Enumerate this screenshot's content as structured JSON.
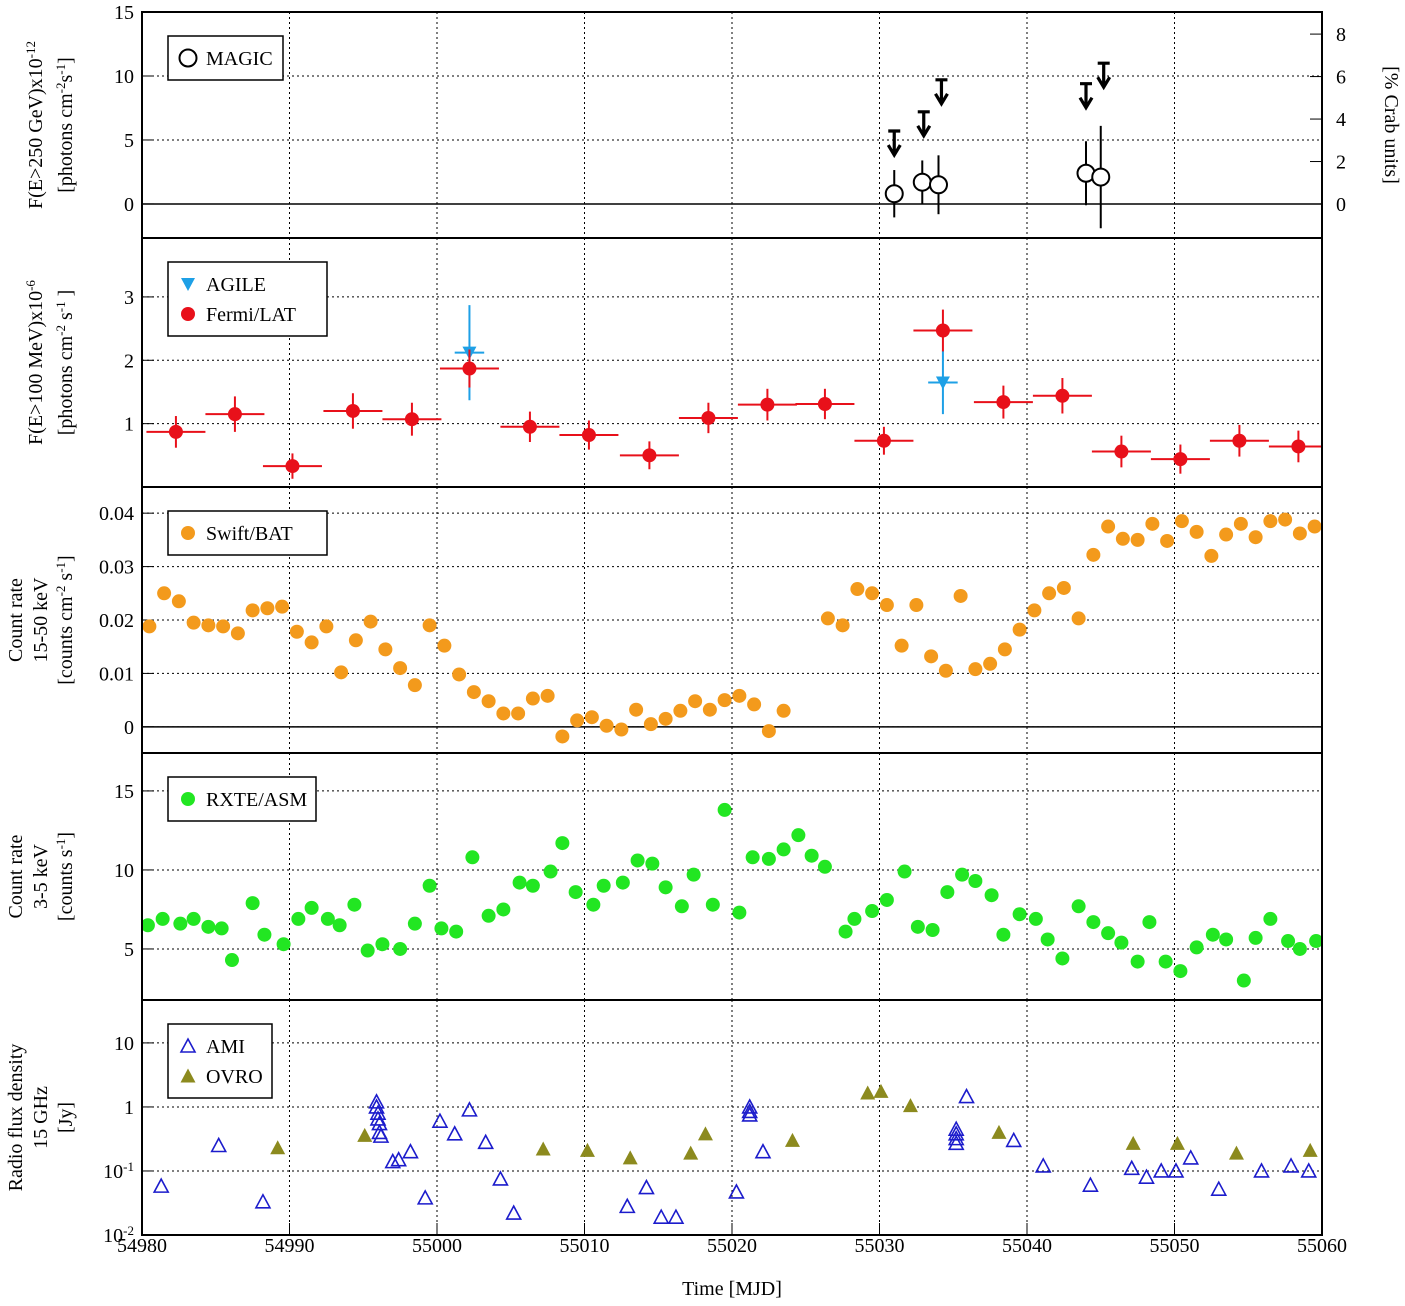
{
  "chart_data": [
    {
      "type": "scatter",
      "legend": "upper left",
      "grid": true,
      "zero_line": true,
      "log": false,
      "ylabel": [
        [
          "F(E>250 GeV)x10",
          "-12"
        ],
        [
          "[photons cm",
          "-2",
          "s",
          "-1",
          "]"
        ]
      ],
      "y2label": [
        [
          "[% Crab units]"
        ]
      ],
      "xlim": [
        54980,
        55060
      ],
      "ylim": [
        -2.66,
        15
      ],
      "yticks": [
        0,
        5,
        10,
        15
      ],
      "y2lim": [
        -1.6,
        9.04
      ],
      "y2ticks": [
        0,
        2,
        4,
        6,
        8
      ],
      "series": [
        {
          "name": "MAGIC",
          "color": "#000000",
          "marker": "circle-open",
          "x": [
            55031.0,
            55032.9,
            55034.0,
            55044.0,
            55045.0
          ],
          "values": [
            0.8,
            1.7,
            1.5,
            2.4,
            2.1
          ],
          "yerr": [
            1.85,
            1.7,
            2.3,
            2.5,
            4.0
          ]
        },
        {
          "color": "#000000",
          "marker": "upper-limit",
          "x": [
            55031.0,
            55033.0,
            55034.2,
            55044.0,
            55045.2
          ],
          "values": [
            5.7,
            7.2,
            9.7,
            9.4,
            11.0
          ]
        }
      ]
    },
    {
      "type": "scatter",
      "legend": "upper left",
      "grid": true,
      "zero_line": false,
      "log": false,
      "ylabel": [
        [
          "F(E>100 MeV)x10",
          "-6"
        ],
        [
          "[photons cm",
          "-2",
          " s",
          "-1",
          " ]"
        ]
      ],
      "xlim": [
        54980,
        55060
      ],
      "ylim": [
        0,
        3.93
      ],
      "yticks": [
        1,
        2,
        3
      ],
      "series": [
        {
          "name": "AGILE",
          "color": "#1ea0e6",
          "marker": "triangle-down",
          "x": [
            55002.2,
            55034.3
          ],
          "values": [
            2.12,
            1.65
          ],
          "yerr": [
            0.75,
            0.5
          ],
          "xerr": [
            1,
            1
          ]
        },
        {
          "name": "Fermi/LAT",
          "color": "#e8101a",
          "marker": "circle",
          "x": [
            54982.3,
            54986.3,
            54990.2,
            54994.3,
            54998.3,
            55002.2,
            55006.3,
            55010.3,
            55014.4,
            55018.4,
            55022.4,
            55026.3,
            55030.3,
            55034.3,
            55038.4,
            55042.4,
            55046.4,
            55050.4,
            55054.4,
            55058.4
          ],
          "values": [
            0.87,
            1.15,
            0.33,
            1.2,
            1.07,
            1.87,
            0.95,
            0.82,
            0.5,
            1.09,
            1.3,
            1.31,
            0.73,
            2.47,
            1.34,
            1.44,
            0.56,
            0.44,
            0.73,
            0.64
          ],
          "yerr": [
            0.25,
            0.28,
            0.2,
            0.28,
            0.26,
            0.3,
            0.24,
            0.23,
            0.22,
            0.24,
            0.25,
            0.24,
            0.22,
            0.33,
            0.26,
            0.28,
            0.25,
            0.23,
            0.25,
            0.25
          ],
          "xerr": [
            2,
            2,
            2,
            2,
            2,
            2,
            2,
            2,
            2,
            2,
            2,
            2,
            2,
            2,
            2,
            2,
            2,
            2,
            2,
            2
          ]
        }
      ]
    },
    {
      "type": "scatter",
      "legend": "upper left",
      "grid": true,
      "zero_line": true,
      "log": false,
      "ylabel": [
        [
          "Count rate"
        ],
        [
          "15-50 keV"
        ],
        [
          "[counts cm",
          "-2",
          " s",
          "-1",
          "]"
        ]
      ],
      "xlim": [
        54980,
        55060
      ],
      "ylim": [
        -0.0049,
        0.0449
      ],
      "yticks": [
        0,
        0.01,
        0.02,
        0.03,
        0.04
      ],
      "series": [
        {
          "name": "Swift/BAT",
          "color": "#f39a1c",
          "marker": "circle",
          "x": [
            54980.5,
            54981.5,
            54982.5,
            54983.5,
            54984.5,
            54985.5,
            54986.5,
            54987.5,
            54988.5,
            54989.5,
            54990.5,
            54991.5,
            54992.5,
            54993.5,
            54994.5,
            54995.5,
            54996.5,
            54997.5,
            54998.5,
            54999.5,
            55000.5,
            55001.5,
            55002.5,
            55003.5,
            55004.5,
            55005.5,
            55006.5,
            55007.5,
            55008.5,
            55009.5,
            55010.5,
            55011.5,
            55012.5,
            55013.5,
            55014.5,
            55015.5,
            55016.5,
            55017.5,
            55018.5,
            55019.5,
            55020.5,
            55021.5,
            55022.5,
            55023.5,
            55026.5,
            55027.5,
            55028.5,
            55029.5,
            55030.5,
            55031.5,
            55032.5,
            55033.5,
            55034.5,
            55035.5,
            55036.5,
            55037.5,
            55038.5,
            55039.5,
            55040.5,
            55041.5,
            55042.5,
            55043.5,
            55044.5,
            55045.5,
            55046.5,
            55047.5,
            55048.5,
            55049.5,
            55050.5,
            55051.5,
            55052.5,
            55053.5,
            55054.5,
            55055.5,
            55056.5,
            55057.5,
            55058.5,
            55059.5
          ],
          "values": [
            0.0188,
            0.025,
            0.0235,
            0.0195,
            0.019,
            0.0188,
            0.0175,
            0.0218,
            0.0222,
            0.0225,
            0.0178,
            0.0158,
            0.0188,
            0.0102,
            0.0162,
            0.0197,
            0.0145,
            0.011,
            0.0078,
            0.019,
            0.0152,
            0.0098,
            0.0065,
            0.0048,
            0.0025,
            0.0025,
            0.0053,
            0.0058,
            -0.0018,
            0.0012,
            0.0018,
            0.0002,
            -0.0005,
            0.0032,
            0.0005,
            0.0015,
            0.003,
            0.0048,
            0.0032,
            0.005,
            0.0058,
            0.0042,
            -0.0008,
            0.003,
            0.0203,
            0.019,
            0.0258,
            0.025,
            0.0228,
            0.0152,
            0.0228,
            0.0132,
            0.0105,
            0.0245,
            0.0108,
            0.0118,
            0.0145,
            0.0182,
            0.0218,
            0.025,
            0.026,
            0.0203,
            0.0322,
            0.0375,
            0.0352,
            0.035,
            0.038,
            0.0348,
            0.0385,
            0.0365,
            0.032,
            0.036,
            0.038,
            0.0355,
            0.0385,
            0.0388,
            0.0362,
            0.0375
          ]
        }
      ]
    },
    {
      "type": "scatter",
      "legend": "upper left",
      "grid": true,
      "zero_line": false,
      "log": false,
      "ylabel": [
        [
          "Count rate"
        ],
        [
          "3-5 keV"
        ],
        [
          "[counts s",
          "-1",
          "]"
        ]
      ],
      "xlim": [
        54980,
        55060
      ],
      "ylim": [
        1.77,
        17.4
      ],
      "yticks": [
        5,
        10,
        15
      ],
      "series": [
        {
          "name": "RXTE/ASM",
          "color": "#22e622",
          "marker": "circle",
          "x": [
            54980.4,
            54981.4,
            54982.6,
            54983.5,
            54984.5,
            54985.4,
            54986.1,
            54987.5,
            54988.3,
            54989.6,
            54990.6,
            54991.5,
            54992.6,
            54993.4,
            54994.4,
            54995.3,
            54996.3,
            54997.5,
            54998.5,
            54999.5,
            55000.3,
            55001.3,
            55002.4,
            55003.5,
            55004.5,
            55005.6,
            55006.5,
            55007.7,
            55008.5,
            55009.4,
            55010.6,
            55011.3,
            55012.6,
            55013.6,
            55014.6,
            55015.5,
            55016.6,
            55017.4,
            55018.7,
            55019.5,
            55020.5,
            55021.4,
            55022.5,
            55023.5,
            55024.5,
            55025.4,
            55026.3,
            55027.7,
            55028.3,
            55029.5,
            55030.5,
            55031.7,
            55032.6,
            55033.6,
            55034.6,
            55035.6,
            55036.5,
            55037.6,
            55038.4,
            55039.5,
            55040.6,
            55041.4,
            55042.4,
            55043.5,
            55044.5,
            55045.5,
            55046.4,
            55047.5,
            55048.3,
            55049.4,
            55050.4,
            55051.5,
            55052.6,
            55053.5,
            55054.7,
            55055.5,
            55056.5,
            55057.7,
            55058.5,
            55059.6
          ],
          "values": [
            6.5,
            6.9,
            6.6,
            6.9,
            6.4,
            6.3,
            4.3,
            7.9,
            5.9,
            5.3,
            6.9,
            7.6,
            6.9,
            6.5,
            7.8,
            4.9,
            5.3,
            5.0,
            6.6,
            9.0,
            6.3,
            6.1,
            10.8,
            7.1,
            7.5,
            9.2,
            9.0,
            9.9,
            11.7,
            8.6,
            7.8,
            9.0,
            9.2,
            10.6,
            10.4,
            8.9,
            7.7,
            9.7,
            7.8,
            13.8,
            7.3,
            10.8,
            10.7,
            11.3,
            12.2,
            10.9,
            10.2,
            6.1,
            6.9,
            7.4,
            8.1,
            9.9,
            6.4,
            6.2,
            8.6,
            9.7,
            9.3,
            8.4,
            5.9,
            7.2,
            6.9,
            5.6,
            4.4,
            7.7,
            6.7,
            6.0,
            5.4,
            4.2,
            6.7,
            4.2,
            3.6,
            5.1,
            5.9,
            5.6,
            3.0,
            5.7,
            6.9,
            5.5,
            5.0,
            5.5
          ]
        }
      ]
    },
    {
      "type": "scatter",
      "legend": "upper left",
      "grid": true,
      "zero_line": false,
      "log": true,
      "ylabel": [
        [
          "Radio flux density"
        ],
        [
          "15 GHz"
        ],
        [
          "[Jy]"
        ]
      ],
      "xlabel": "Time [MJD]",
      "xlim": [
        54980,
        55060
      ],
      "xticks": [
        54980,
        54990,
        55000,
        55010,
        55020,
        55030,
        55040,
        55050,
        55060
      ],
      "ylim": [
        0.01,
        46.8
      ],
      "yticks": [
        {
          "value": 0.01,
          "label": "10",
          "exponent": "-2"
        },
        {
          "value": 0.1,
          "label": "10",
          "exponent": "-1"
        },
        1,
        10
      ],
      "series": [
        {
          "name": "AMI",
          "color": "#1c1ccc",
          "marker": "triangle-open",
          "x": [
            54981.3,
            54985.2,
            54988.2,
            54995.9,
            54995.9,
            54996.0,
            54996.0,
            54996.1,
            54996.1,
            54996.2,
            54997.0,
            54997.4,
            54998.2,
            54999.2,
            55000.2,
            55001.2,
            55002.2,
            55003.3,
            55004.3,
            55005.2,
            55012.9,
            55014.2,
            55015.2,
            55016.2,
            55020.3,
            55021.2,
            55021.2,
            55021.2,
            55022.1,
            55035.2,
            55035.2,
            55035.2,
            55035.2,
            55035.9,
            55039.1,
            55041.1,
            55044.3,
            55047.1,
            55048.1,
            55049.1,
            55050.1,
            55051.1,
            55053.0,
            55055.9,
            55057.9,
            55059.1
          ],
          "values": [
            0.058,
            0.25,
            0.033,
            1.2,
            1.0,
            0.8,
            0.65,
            0.55,
            0.4,
            0.35,
            0.14,
            0.15,
            0.2,
            0.038,
            0.6,
            0.38,
            0.9,
            0.28,
            0.075,
            0.022,
            0.028,
            0.055,
            0.019,
            0.019,
            0.047,
            1.0,
            0.85,
            0.75,
            0.2,
            0.45,
            0.38,
            0.32,
            0.27,
            1.45,
            0.3,
            0.12,
            0.06,
            0.11,
            0.08,
            0.1,
            0.1,
            0.16,
            0.052,
            0.1,
            0.12,
            0.1
          ]
        },
        {
          "name": "OVRO",
          "color": "#8c8a1e",
          "marker": "triangle",
          "x": [
            54989.2,
            54995.1,
            55007.2,
            55010.2,
            55013.1,
            55017.2,
            55018.2,
            55024.1,
            55029.2,
            55030.1,
            55032.1,
            55038.1,
            55047.2,
            55050.2,
            55054.2,
            55059.2
          ],
          "values": [
            0.23,
            0.36,
            0.22,
            0.21,
            0.16,
            0.19,
            0.38,
            0.3,
            1.65,
            1.75,
            1.05,
            0.4,
            0.27,
            0.27,
            0.19,
            0.21
          ]
        }
      ]
    }
  ]
}
